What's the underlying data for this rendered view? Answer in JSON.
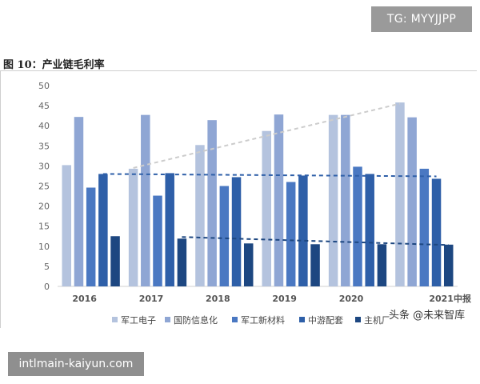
{
  "badge_top": "TG: MYYJJPP",
  "badge_bottom": "intlmain-kaiyun.com",
  "watermark": "头条 @未来智库",
  "figure_title": "图 10：产业链毛利率",
  "chart_data": {
    "type": "bar",
    "title": "",
    "xlabel": "",
    "ylabel": "",
    "ylim": [
      0,
      50
    ],
    "yticks": [
      0,
      5,
      10,
      15,
      20,
      25,
      30,
      35,
      40,
      45,
      50
    ],
    "grid": false,
    "legend_position": "bottom",
    "categories": [
      "2016",
      "2017",
      "2018",
      "2019",
      "2020",
      "2021中报"
    ],
    "series": [
      {
        "name": "军工电子",
        "color": "#b4c3de",
        "values": [
          30.2,
          29.3,
          35.2,
          38.7,
          42.7,
          45.8
        ]
      },
      {
        "name": "国防信息化",
        "color": "#8fa6d4",
        "values": [
          42.2,
          42.7,
          41.4,
          42.8,
          42.7,
          42.1
        ]
      },
      {
        "name": "军工新材料",
        "color": "#4a78c2",
        "values": [
          24.6,
          22.6,
          25.0,
          26.0,
          29.8,
          29.3
        ]
      },
      {
        "name": "中游配套",
        "color": "#2e5fa8",
        "values": [
          28.0,
          28.2,
          27.2,
          27.6,
          28.0,
          26.8
        ]
      },
      {
        "name": "主机厂",
        "color": "#1d4781",
        "values": [
          12.5,
          11.9,
          10.7,
          10.5,
          10.5,
          10.4
        ]
      }
    ],
    "trend_lines": [
      {
        "series": "军工电子",
        "color": "#cccccc",
        "from": [
          "2017",
          29.5
        ],
        "to": [
          "2021中报",
          45.5
        ]
      },
      {
        "series": "中游配套",
        "color": "#2e5fa8",
        "from": [
          "2016",
          28.0
        ],
        "to": [
          "2021中报",
          27.4
        ]
      },
      {
        "series": "主机厂",
        "color": "#1d4781",
        "from": [
          "2017",
          12.3
        ],
        "to": [
          "2021中报",
          10.3
        ]
      }
    ]
  }
}
